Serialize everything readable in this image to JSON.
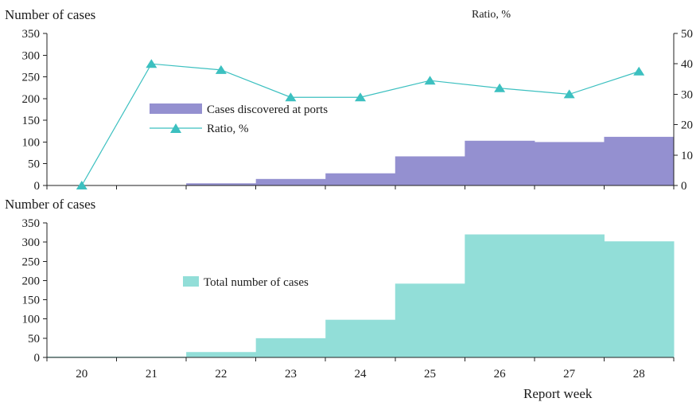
{
  "chart_data": [
    {
      "type": "bar",
      "categories": [
        "20",
        "21",
        "22",
        "23",
        "24",
        "25",
        "26",
        "27",
        "28"
      ],
      "ylabel": "Number of cases",
      "ylim": [
        0,
        350
      ],
      "yticks": [
        "0",
        "50",
        "100",
        "150",
        "200",
        "250",
        "300",
        "350"
      ],
      "y2label": "Ratio, %",
      "y2lim": [
        0,
        50
      ],
      "y2ticks": [
        "0",
        "10",
        "20",
        "30",
        "40",
        "50"
      ],
      "series": [
        {
          "name": "Cases discovered at ports",
          "kind": "bar",
          "color": "#9490d0",
          "values": [
            0,
            1,
            5,
            15,
            28,
            67,
            103,
            100,
            112
          ]
        },
        {
          "name": "Ratio, %",
          "kind": "line",
          "axis": "right",
          "color": "#3cc0c0",
          "marker": "triangle",
          "values": [
            0,
            40,
            38,
            29,
            29,
            34.5,
            32,
            30,
            37.5
          ]
        }
      ],
      "legend": "center-left",
      "grid": false
    },
    {
      "type": "bar",
      "categories": [
        "20",
        "21",
        "22",
        "23",
        "24",
        "25",
        "26",
        "27",
        "28"
      ],
      "ylabel": "Number of cases",
      "ylim": [
        0,
        350
      ],
      "yticks": [
        "0",
        "50",
        "100",
        "150",
        "200",
        "250",
        "300",
        "350"
      ],
      "xlabel": "Report week",
      "series": [
        {
          "name": "Total number of cases",
          "kind": "bar",
          "color": "#92ded8",
          "values": [
            2,
            2,
            14,
            50,
            98,
            192,
            320,
            320,
            302
          ]
        }
      ],
      "legend": "center-left",
      "grid": false
    }
  ]
}
